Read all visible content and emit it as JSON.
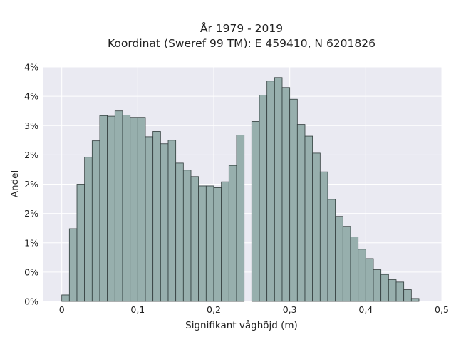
{
  "chart_data": {
    "type": "bar",
    "title": "År 1979 - 2019",
    "subtitle": "Koordinat (Sweref 99 TM): E 459410, N 6201826",
    "xlabel": "Signifikant våghöjd (m)",
    "ylabel": "Andel",
    "xlim": [
      -0.025,
      0.5
    ],
    "ylim": [
      0,
      4
    ],
    "bin_width": 0.01,
    "x_ticks": [
      0,
      0.1,
      0.2,
      0.3,
      0.4,
      0.5
    ],
    "x_tick_labels": [
      "0",
      "0,1",
      "0,2",
      "0,3",
      "0,4",
      "0,5"
    ],
    "y_ticks": [
      0,
      0.5,
      1,
      1.5,
      2,
      2.5,
      3,
      3.5,
      4
    ],
    "y_tick_labels": [
      "0%",
      "0%",
      "1%",
      "2%",
      "2%",
      "2%",
      "3%",
      "4%",
      "4%"
    ],
    "grid": true,
    "colors": {
      "background": "#eaeaf2",
      "bar_fill": "#97afad",
      "bar_edge": "#2f3b3a",
      "grid": "#ffffff"
    },
    "series": [
      {
        "x": [
          0.0,
          0.01,
          0.02,
          0.03,
          0.04,
          0.05,
          0.06,
          0.07,
          0.08,
          0.09,
          0.1,
          0.11,
          0.12,
          0.13,
          0.14,
          0.15,
          0.16,
          0.17,
          0.18,
          0.19,
          0.2,
          0.21,
          0.22,
          0.23,
          0.24,
          0.25,
          0.26,
          0.27,
          0.28,
          0.29,
          0.3,
          0.31,
          0.32,
          0.33,
          0.34,
          0.35,
          0.36,
          0.37,
          0.38,
          0.39,
          0.4,
          0.41,
          0.42,
          0.43,
          0.44,
          0.45,
          0.46
        ],
        "values": [
          0.11,
          1.24,
          2.0,
          2.46,
          2.74,
          3.17,
          3.16,
          3.25,
          3.18,
          3.14,
          3.14,
          2.81,
          2.9,
          2.69,
          2.75,
          2.36,
          2.24,
          2.13,
          1.97,
          1.97,
          1.94,
          2.04,
          2.32,
          2.84,
          0.0,
          3.07,
          3.52,
          3.76,
          3.82,
          3.65,
          3.45,
          3.02,
          2.82,
          2.53,
          2.21,
          1.74,
          1.45,
          1.28,
          1.1,
          0.89,
          0.73,
          0.54,
          0.46,
          0.37,
          0.33,
          0.2,
          0.05
        ]
      }
    ]
  }
}
